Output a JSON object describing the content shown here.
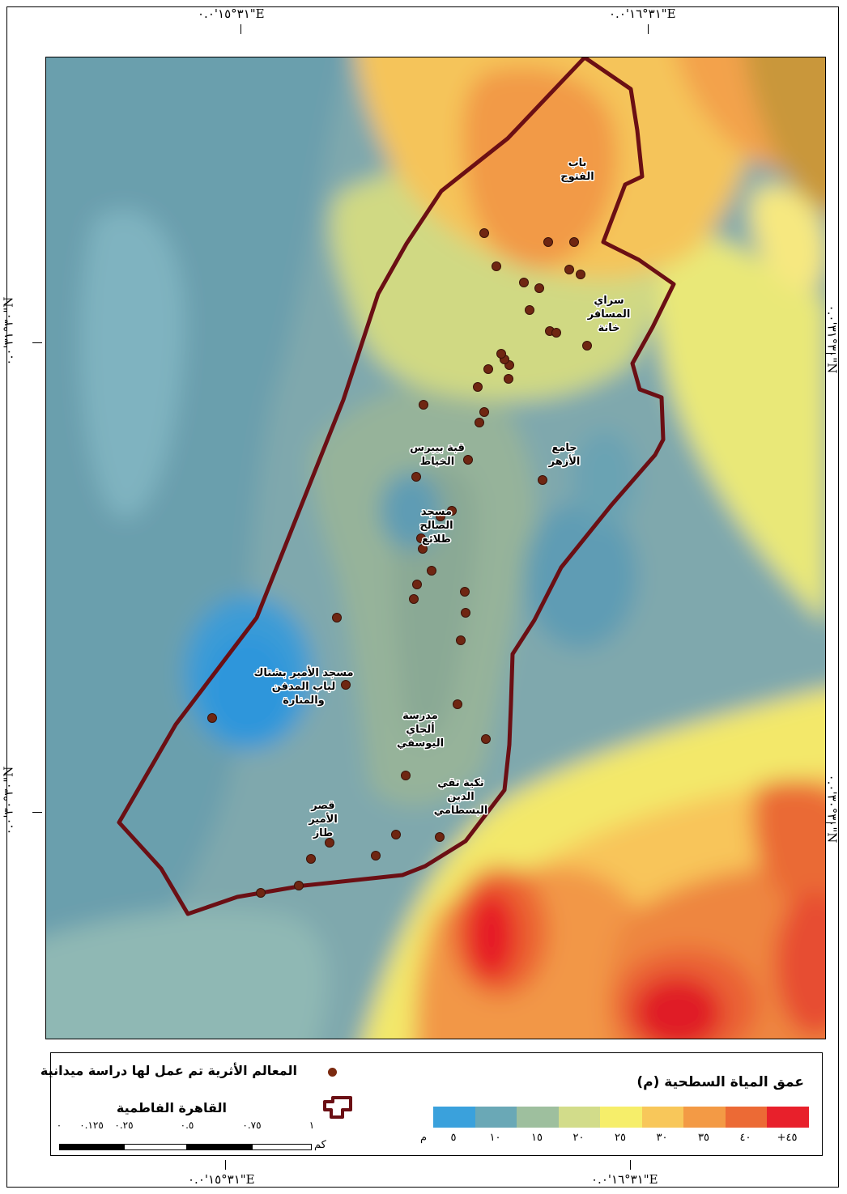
{
  "coordinates": {
    "top": [
      "٣١°١٥'٠.٠\"E",
      "٣١°١٦'٠.٠\"E"
    ],
    "bottom": [
      "٣١°١٥'٠.٠\"E",
      "٣١°١٦'٠.٠\"E"
    ],
    "left": [
      "٣٠°٣١'٠.٠\"N",
      "٣٠°٣٠'٠.٠\"N"
    ],
    "right": [
      "٣٠°٣١'٠.٠\"N",
      "٣٠°٣٠'٠.٠\"N"
    ]
  },
  "places": [
    {
      "label": "باب الفتوح",
      "lines": [
        "باب",
        "الفتوح"
      ]
    },
    {
      "label": "سراي المسافر خانة",
      "lines": [
        "سراي",
        "المسافر",
        "خانة"
      ]
    },
    {
      "label": "قبة بيبرس الخياط",
      "lines": [
        "قبة بيبرس",
        "الخياط"
      ]
    },
    {
      "label": "جامع الأزهر",
      "lines": [
        "جامع",
        "الأزهر"
      ]
    },
    {
      "label": "مسجد الصالح طلائع",
      "lines": [
        "مسجد",
        "الصالح",
        "طلائع"
      ]
    },
    {
      "label": "مسجد الأمير بشتاك لباب المدفن والمنارة",
      "lines": [
        "مسجد الأمير بشتاك",
        "لباب المدفن",
        "والمنارة"
      ]
    },
    {
      "label": "مدرسة ألجاي اليوسفي",
      "lines": [
        "مدرسة",
        "ألجاي",
        "اليوسفي"
      ]
    },
    {
      "label": "تكية تقي الدين البسطامي",
      "lines": [
        "تكية تقي",
        "الدين",
        "البسطامي"
      ]
    },
    {
      "label": "قصر الأمير طاز",
      "lines": [
        "قصر",
        "الأمير",
        "طاز"
      ]
    }
  ],
  "legend": {
    "title": "عمق المياة السطحية (م)",
    "unit": "م",
    "classes": [
      "٥",
      "١٠",
      "١٥",
      "٢٠",
      "٢٥",
      "٣٠",
      "٣٥",
      "٤٠",
      "+٤٥"
    ],
    "colors": [
      "#3aa1dc",
      "#6aa8b6",
      "#9ebf9e",
      "#d2dc8a",
      "#f6ee6a",
      "#f8c75a",
      "#f39a45",
      "#ec6a35",
      "#e8202b"
    ],
    "sites_label": "المعالم الأثرية تم عمل لها دراسة ميدانية",
    "boundary_label": "القاهرة الفاطمية",
    "scale_values": [
      "٠",
      "٠.١٢٥",
      "٠.٢٥",
      "٠.٥",
      "٠.٧٥",
      "١"
    ],
    "scale_unit": "كم"
  }
}
